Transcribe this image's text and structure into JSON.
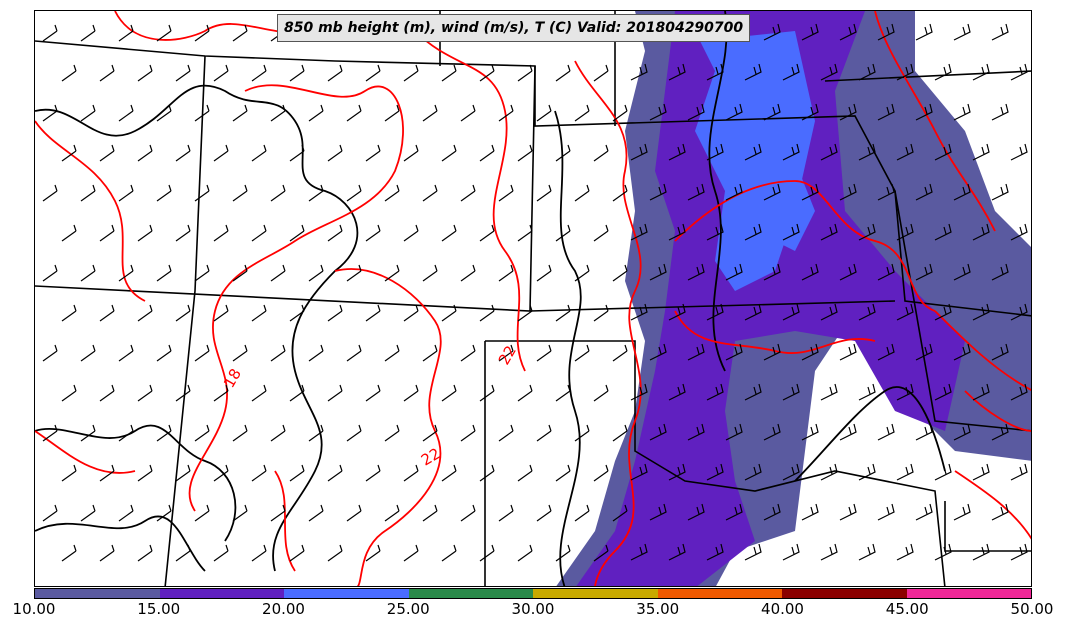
{
  "title": "850 mb height (m), wind (m/s), T (C) Valid: 201804290700",
  "contour_labels": [
    "18",
    "22",
    "22"
  ],
  "colorbar": {
    "colors": [
      "#5a5aa0",
      "#6020c0",
      "#4a6cff",
      "#2a8a4a",
      "#c8aa00",
      "#f05a00",
      "#8b0000",
      "#f02898"
    ],
    "ticks": [
      "10.00",
      "15.00",
      "20.00",
      "25.00",
      "30.00",
      "35.00",
      "40.00",
      "45.00",
      "50.00"
    ]
  },
  "colors": {
    "temperature_contour": "#ff0000",
    "height_contour": "#000000",
    "state_lines": "#000000",
    "wind_barbs": "#000000"
  }
}
